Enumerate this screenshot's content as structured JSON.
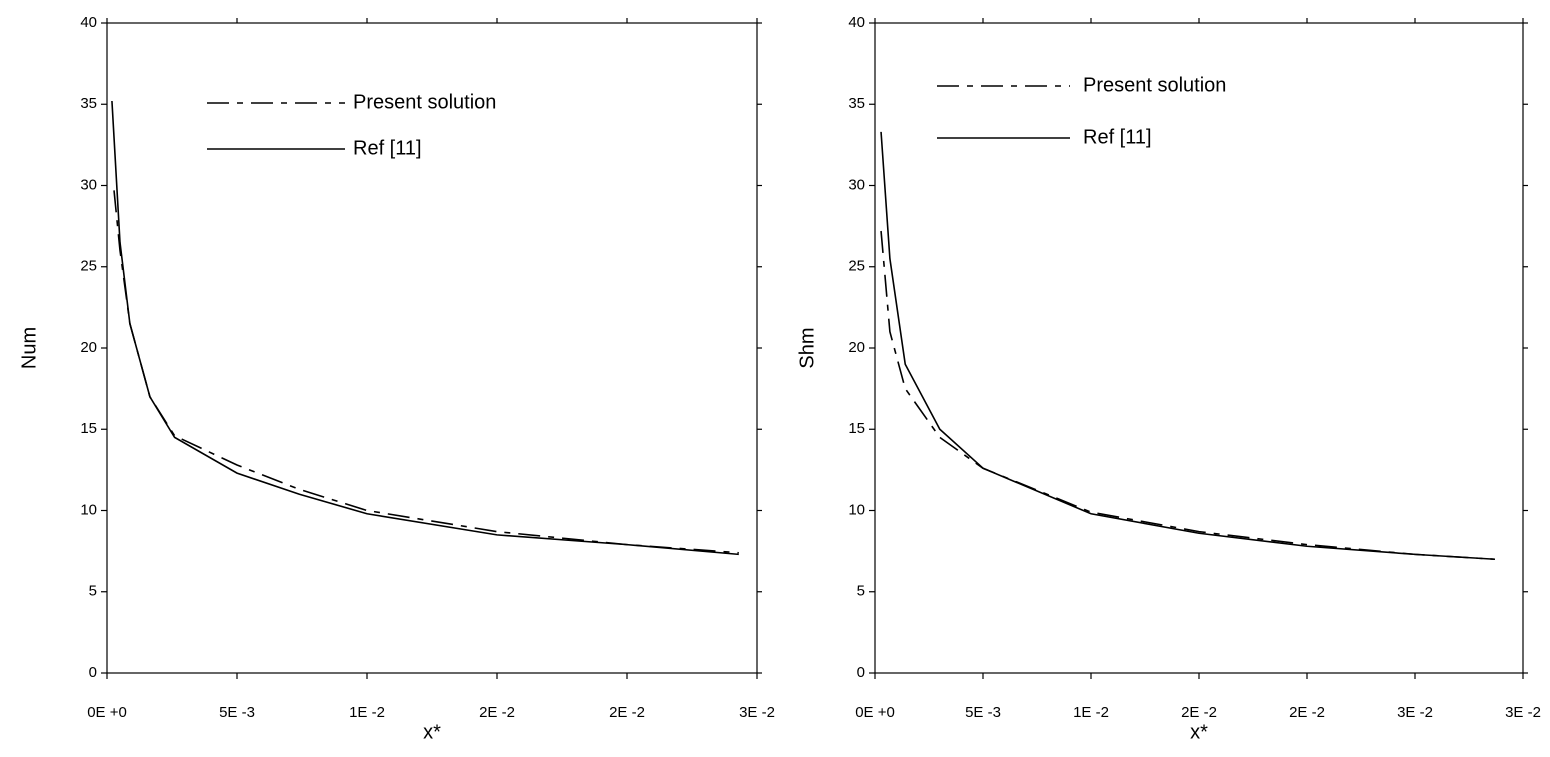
{
  "chart_data": [
    {
      "type": "line",
      "xlabel": "x*",
      "ylabel": "Num",
      "xlim": [
        0,
        0.025
      ],
      "ylim": [
        0,
        40
      ],
      "xticks": [
        {
          "value": 0,
          "label": "0E +0"
        },
        {
          "value": 0.005,
          "label": "5E -3"
        },
        {
          "value": 0.01,
          "label": "1E -2"
        },
        {
          "value": 0.015,
          "label": "2E -2"
        },
        {
          "value": 0.02,
          "label": "2E -2"
        },
        {
          "value": 0.025,
          "label": "3E -2"
        }
      ],
      "yticks": [
        0,
        5,
        10,
        15,
        20,
        25,
        30,
        35,
        40
      ],
      "series": [
        {
          "name": "Present solution",
          "color": "#000000",
          "line_style": "dashed",
          "x": [
            0.00027,
            0.0005,
            0.00088,
            0.00165,
            0.0026,
            0.005,
            0.0074,
            0.01,
            0.015,
            0.02,
            0.0243
          ],
          "values": [
            29.7,
            26,
            21.5,
            17,
            14.6,
            12.8,
            11.3,
            10,
            8.7,
            7.9,
            7.4
          ]
        },
        {
          "name": "Ref [11]",
          "color": "#000000",
          "line_style": "solid",
          "x": [
            0.00019,
            0.0005,
            0.00088,
            0.00165,
            0.0026,
            0.005,
            0.0074,
            0.01,
            0.015,
            0.02,
            0.0243
          ],
          "values": [
            35.2,
            26.5,
            21.5,
            17,
            14.5,
            12.3,
            11,
            9.8,
            8.5,
            7.9,
            7.3
          ]
        }
      ]
    },
    {
      "type": "line",
      "xlabel": "x*",
      "ylabel": "Shm",
      "xlim": [
        0,
        0.03
      ],
      "ylim": [
        0,
        40
      ],
      "xticks": [
        {
          "value": 0,
          "label": "0E +0"
        },
        {
          "value": 0.005,
          "label": "5E -3"
        },
        {
          "value": 0.01,
          "label": "1E -2"
        },
        {
          "value": 0.015,
          "label": "2E -2"
        },
        {
          "value": 0.02,
          "label": "2E -2"
        },
        {
          "value": 0.025,
          "label": "3E -2"
        },
        {
          "value": 0.03,
          "label": "3E -2"
        }
      ],
      "yticks": [
        0,
        5,
        10,
        15,
        20,
        25,
        30,
        35,
        40
      ],
      "series": [
        {
          "name": "Present solution",
          "color": "#000000",
          "line_style": "dashed",
          "x": [
            0.00028,
            0.00069,
            0.0014,
            0.003,
            0.005,
            0.01,
            0.015,
            0.02,
            0.025,
            0.0287
          ],
          "values": [
            27.2,
            21,
            17.5,
            14.5,
            12.6,
            9.9,
            8.7,
            7.9,
            7.3,
            7.0
          ]
        },
        {
          "name": "Ref [11]",
          "color": "#000000",
          "line_style": "solid",
          "x": [
            0.00028,
            0.00069,
            0.0014,
            0.003,
            0.005,
            0.01,
            0.015,
            0.02,
            0.025,
            0.0287
          ],
          "values": [
            33.3,
            25.5,
            19,
            15,
            12.6,
            9.8,
            8.6,
            7.8,
            7.3,
            7.0
          ]
        }
      ]
    }
  ]
}
